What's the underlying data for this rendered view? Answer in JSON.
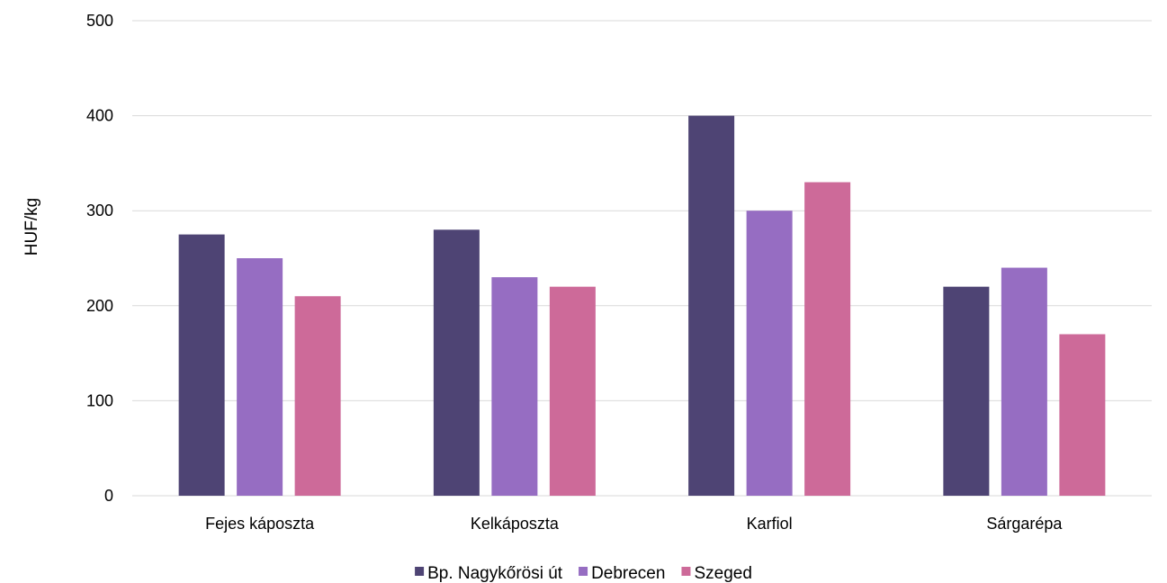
{
  "chart_data": {
    "type": "bar",
    "title": "",
    "xlabel": "",
    "ylabel": "HUF/kg",
    "ylim": [
      0,
      500
    ],
    "yticks": [
      0,
      100,
      200,
      300,
      400,
      500
    ],
    "grid": true,
    "legend_position": "bottom",
    "categories": [
      "Fejes káposzta",
      "Kelkáposzta",
      "Karfiol",
      "Sárgarépa"
    ],
    "series": [
      {
        "name": "Bp. Nagykőrösi út",
        "color": "#4e4474",
        "values": [
          275,
          280,
          400,
          220
        ]
      },
      {
        "name": "Debrecen",
        "color": "#966dc2",
        "values": [
          250,
          230,
          300,
          240
        ]
      },
      {
        "name": "Szeged",
        "color": "#cd6a99",
        "values": [
          210,
          220,
          330,
          170
        ]
      }
    ]
  }
}
